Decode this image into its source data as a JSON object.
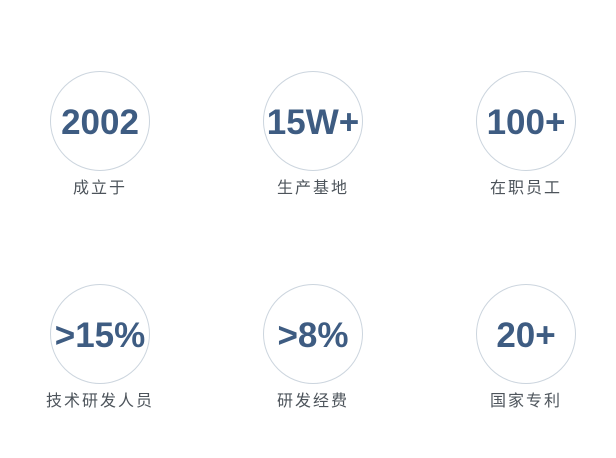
{
  "page": {
    "background": "#ffffff"
  },
  "stats": {
    "colors": {
      "value_color": "#3e5c82",
      "label_color": "#4d545b",
      "circle_border": "#ccd5de"
    },
    "items": [
      {
        "value": "2002",
        "label": "成立于"
      },
      {
        "value": "15W+",
        "label": "生产基地"
      },
      {
        "value": "100+",
        "label": "在职员工"
      },
      {
        "value": ">15%",
        "label": "技术研发人员"
      },
      {
        "value": ">8%",
        "label": "研发经费"
      },
      {
        "value": "20+",
        "label": "国家专利"
      }
    ]
  }
}
